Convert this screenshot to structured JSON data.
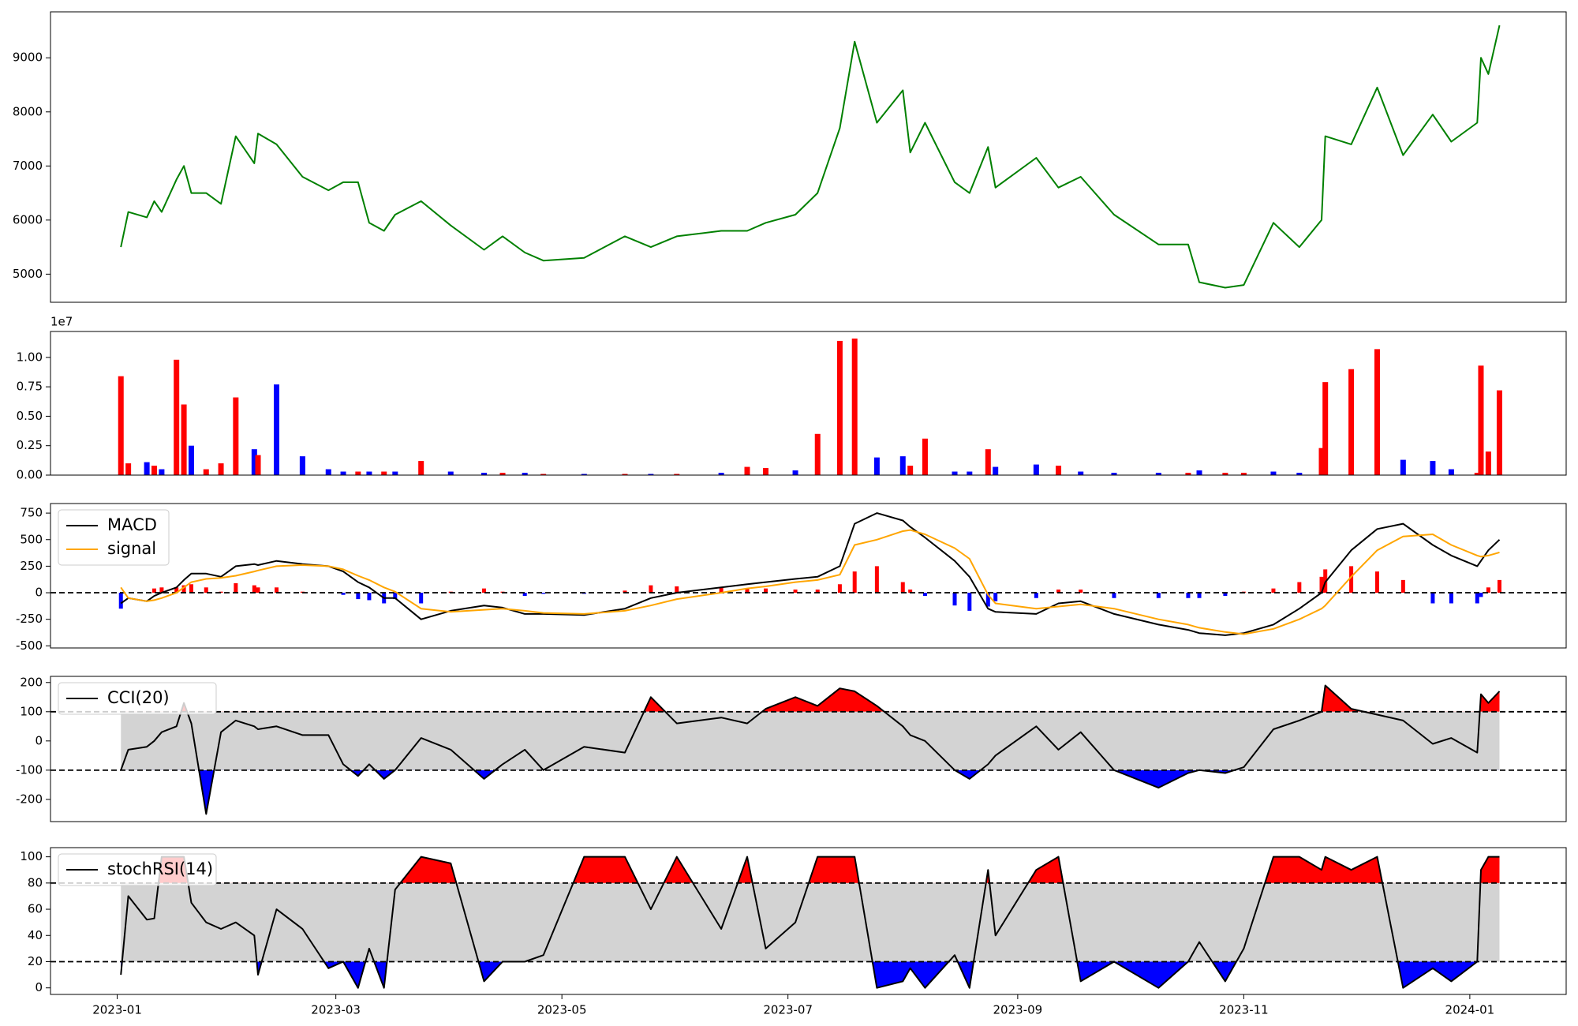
{
  "chart_data": {
    "type": "multi-panel",
    "x": [
      "2023-01-02",
      "2023-01-04",
      "2023-01-09",
      "2023-01-11",
      "2023-01-13",
      "2023-01-17",
      "2023-01-19",
      "2023-01-21",
      "2023-01-25",
      "2023-01-29",
      "2023-02-02",
      "2023-02-07",
      "2023-02-08",
      "2023-02-13",
      "2023-02-20",
      "2023-02-27",
      "2023-03-03",
      "2023-03-07",
      "2023-03-10",
      "2023-03-14",
      "2023-03-17",
      "2023-03-24",
      "2023-04-01",
      "2023-04-10",
      "2023-04-15",
      "2023-04-21",
      "2023-04-26",
      "2023-05-07",
      "2023-05-18",
      "2023-05-25",
      "2023-06-01",
      "2023-06-13",
      "2023-06-20",
      "2023-06-25",
      "2023-07-03",
      "2023-07-09",
      "2023-07-15",
      "2023-07-19",
      "2023-07-25",
      "2023-08-01",
      "2023-08-03",
      "2023-08-07",
      "2023-08-15",
      "2023-08-19",
      "2023-08-24",
      "2023-08-26",
      "2023-09-06",
      "2023-09-12",
      "2023-09-18",
      "2023-09-27",
      "2023-10-09",
      "2023-10-17",
      "2023-10-20",
      "2023-10-27",
      "2023-11-01",
      "2023-11-09",
      "2023-11-16",
      "2023-11-22",
      "2023-11-23",
      "2023-11-30",
      "2023-12-07",
      "2023-12-14",
      "2023-12-22",
      "2023-12-27",
      "2024-01-03",
      "2024-01-04",
      "2024-01-06",
      "2024-01-09"
    ],
    "xlim": [
      "2022-12-14",
      "2024-01-27"
    ],
    "xticks": [
      "2023-01",
      "2023-03",
      "2023-05",
      "2023-07",
      "2023-09",
      "2023-11",
      "2024-01"
    ],
    "panels": [
      {
        "type": "line",
        "ylim": [
          4480,
          9850
        ],
        "yticks": [
          5000,
          6000,
          7000,
          8000,
          9000
        ],
        "series": [
          {
            "color": "green",
            "values": [
              5500,
              6150,
              6050,
              6350,
              6150,
              6750,
              7000,
              6500,
              6500,
              6300,
              7550,
              7050,
              7600,
              7400,
              6800,
              6550,
              6700,
              6700,
              5950,
              5800,
              6100,
              6350,
              5900,
              5450,
              5700,
              5400,
              5250,
              5300,
              5700,
              5500,
              5700,
              5800,
              5800,
              5950,
              6100,
              6500,
              7700,
              9300,
              7800,
              8400,
              7250,
              7800,
              6700,
              6500,
              7350,
              6600,
              7150,
              6600,
              6800,
              6100,
              5550,
              5550,
              4850,
              4750,
              4800,
              5950,
              5500,
              6000,
              7550,
              7400,
              8450,
              7200,
              7950,
              7450,
              7800,
              9000,
              8700,
              9600
            ]
          }
        ]
      },
      {
        "type": "bar",
        "ylim": [
          0,
          1.22
        ],
        "yticks": [
          {
            "value": 0,
            "label": "0.00"
          },
          {
            "value": 0.25,
            "label": "0.25"
          },
          {
            "value": 0.5,
            "label": "0.50"
          },
          {
            "value": 0.75,
            "label": "0.75"
          },
          {
            "value": 1,
            "label": "1.00"
          }
        ],
        "offset_label": "1e7",
        "values": [
          0.84,
          0.1,
          0.11,
          0.08,
          0.05,
          0.98,
          0.6,
          0.25,
          0.05,
          0.1,
          0.66,
          0.22,
          0.17,
          0.77,
          0.16,
          0.05,
          0.03,
          0.03,
          0.03,
          0.03,
          0.03,
          0.12,
          0.03,
          0.02,
          0.02,
          0.02,
          0.01,
          0.01,
          0.01,
          0.01,
          0.01,
          0.02,
          0.07,
          0.06,
          0.04,
          0.35,
          1.14,
          1.16,
          0.15,
          0.16,
          0.08,
          0.31,
          0.03,
          0.03,
          0.22,
          0.07,
          0.09,
          0.08,
          0.03,
          0.02,
          0.02,
          0.02,
          0.04,
          0.02,
          0.02,
          0.03,
          0.02,
          0.23,
          0.79,
          0.9,
          1.07,
          0.13,
          0.12,
          0.05,
          0.02,
          0.93,
          0.2,
          0.72
        ],
        "colors": [
          "red",
          "red",
          "blue",
          "red",
          "blue",
          "red",
          "red",
          "blue",
          "red",
          "red",
          "red",
          "blue",
          "red",
          "blue",
          "blue",
          "blue",
          "blue",
          "red",
          "blue",
          "red",
          "blue",
          "red",
          "blue",
          "blue",
          "red",
          "blue",
          "red",
          "blue",
          "red",
          "blue",
          "red",
          "blue",
          "red",
          "red",
          "blue",
          "red",
          "red",
          "red",
          "blue",
          "blue",
          "red",
          "red",
          "blue",
          "blue",
          "red",
          "blue",
          "blue",
          "red",
          "blue",
          "blue",
          "blue",
          "red",
          "blue",
          "red",
          "red",
          "blue",
          "blue",
          "red",
          "red",
          "red",
          "red",
          "blue",
          "blue",
          "blue",
          "red",
          "red",
          "red",
          "red"
        ]
      },
      {
        "type": "macd",
        "ylim": [
          -520,
          840
        ],
        "yticks": [
          -500,
          -250,
          0,
          250,
          500,
          750
        ],
        "reference": 0,
        "legend": "upper left",
        "series": [
          {
            "name": "MACD",
            "color": "black",
            "values": [
              -100,
              -50,
              -80,
              -30,
              0,
              50,
              120,
              180,
              180,
              150,
              250,
              270,
              260,
              300,
              270,
              250,
              200,
              100,
              50,
              -50,
              -50,
              -250,
              -170,
              -120,
              -140,
              -200,
              -200,
              -210,
              -150,
              -50,
              0,
              50,
              80,
              100,
              130,
              150,
              250,
              650,
              750,
              680,
              620,
              520,
              300,
              150,
              -150,
              -180,
              -200,
              -100,
              -80,
              -200,
              -300,
              -350,
              -380,
              -400,
              -380,
              -300,
              -150,
              0,
              100,
              400,
              600,
              650,
              450,
              350,
              250,
              300,
              400,
              500
            ]
          },
          {
            "name": "signal",
            "color": "orange",
            "values": [
              50,
              -50,
              -80,
              -70,
              -50,
              0,
              50,
              100,
              130,
              140,
              160,
              200,
              210,
              250,
              260,
              250,
              220,
              160,
              120,
              50,
              10,
              -150,
              -180,
              -160,
              -150,
              -170,
              -190,
              -200,
              -170,
              -120,
              -60,
              0,
              40,
              60,
              100,
              120,
              170,
              450,
              500,
              580,
              590,
              550,
              420,
              320,
              -20,
              -100,
              -150,
              -130,
              -110,
              -150,
              -250,
              -300,
              -330,
              -370,
              -390,
              -340,
              -250,
              -150,
              -120,
              150,
              400,
              530,
              550,
              450,
              350,
              340,
              350,
              380
            ]
          }
        ],
        "histogram": {
          "pos_color": "red",
          "neg_color": "blue",
          "values": [
            -150,
            0,
            0,
            40,
            50,
            50,
            70,
            80,
            50,
            10,
            90,
            70,
            50,
            50,
            10,
            0,
            -20,
            -60,
            -70,
            -100,
            -60,
            -100,
            10,
            40,
            10,
            -30,
            -10,
            -10,
            20,
            70,
            60,
            50,
            40,
            40,
            30,
            30,
            80,
            200,
            250,
            100,
            30,
            -30,
            -120,
            -170,
            -130,
            -80,
            -50,
            30,
            30,
            -50,
            -50,
            -50,
            -50,
            -30,
            10,
            40,
            100,
            150,
            220,
            250,
            200,
            120,
            -100,
            -100,
            -100,
            -40,
            50,
            120
          ]
        }
      },
      {
        "type": "band",
        "ylim": [
          -276,
          221
        ],
        "yticks": [
          -200,
          -100,
          0,
          100,
          200
        ],
        "levels": [
          -100,
          100
        ],
        "band_color": "lightgray",
        "above_color": "red",
        "below_color": "blue",
        "legend": "upper left",
        "series": [
          {
            "name": "CCI(20)",
            "color": "black",
            "values": [
              -100,
              -30,
              -20,
              0,
              30,
              50,
              130,
              60,
              -250,
              30,
              70,
              50,
              40,
              50,
              20,
              20,
              -80,
              -120,
              -80,
              -130,
              -100,
              10,
              -30,
              -130,
              -80,
              -30,
              -100,
              -20,
              -40,
              150,
              60,
              80,
              60,
              110,
              150,
              120,
              180,
              170,
              120,
              50,
              20,
              0,
              -100,
              -130,
              -80,
              -50,
              50,
              -30,
              30,
              -100,
              -160,
              -110,
              -100,
              -110,
              -90,
              40,
              70,
              100,
              190,
              110,
              90,
              70,
              -10,
              10,
              -40,
              160,
              130,
              170
            ]
          }
        ]
      },
      {
        "type": "band",
        "ylim": [
          -5,
          107
        ],
        "yticks": [
          0,
          20,
          40,
          60,
          80,
          100
        ],
        "levels": [
          20,
          80
        ],
        "band_color": "lightgray",
        "above_color": "red",
        "below_color": "blue",
        "legend": "upper left",
        "series": [
          {
            "name": "stochRSI(14)",
            "color": "black",
            "values": [
              10,
              70,
              52,
              53,
              100,
              100,
              100,
              65,
              50,
              45,
              50,
              40,
              10,
              60,
              45,
              15,
              20,
              0,
              30,
              0,
              75,
              100,
              95,
              5,
              20,
              20,
              25,
              100,
              100,
              60,
              100,
              45,
              100,
              30,
              50,
              100,
              100,
              100,
              0,
              5,
              15,
              0,
              25,
              0,
              90,
              40,
              90,
              100,
              5,
              20,
              0,
              20,
              35,
              5,
              30,
              100,
              100,
              90,
              100,
              90,
              100,
              0,
              15,
              5,
              20,
              90,
              100,
              100
            ]
          }
        ]
      }
    ]
  }
}
